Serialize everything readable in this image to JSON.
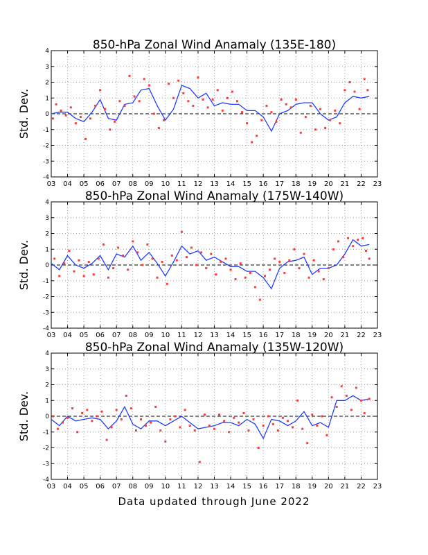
{
  "footer": "Data updated through June 2022",
  "colors": {
    "line": "#1f3cff",
    "dots": "#ff3a3a",
    "grid": "#9a9a9a",
    "axis": "#000000"
  },
  "chart_data": [
    {
      "type": "line",
      "title": "850-hPa Zonal Wind Anamaly (135E-180)",
      "ylabel": "Std. Dev.",
      "xlabel": "",
      "ylim": [
        -4,
        4
      ],
      "xlim": [
        2003,
        2023
      ],
      "yticks": [
        "-4",
        "-3",
        "-2",
        "-1",
        "0",
        "1",
        "2",
        "3",
        "4"
      ],
      "xticks": [
        "03",
        "04",
        "05",
        "06",
        "07",
        "08",
        "09",
        "10",
        "11",
        "12",
        "13",
        "14",
        "15",
        "16",
        "17",
        "18",
        "19",
        "20",
        "21",
        "22",
        "23"
      ],
      "grid": true,
      "zero_line": "dashed",
      "series": [
        {
          "style": "line",
          "x": [
            2003.0,
            2003.5,
            2004.0,
            2004.5,
            2005.0,
            2005.5,
            2006.0,
            2006.5,
            2007.0,
            2007.5,
            2008.0,
            2008.5,
            2009.0,
            2009.5,
            2010.0,
            2010.5,
            2011.0,
            2011.5,
            2012.0,
            2012.5,
            2013.0,
            2013.5,
            2014.0,
            2014.5,
            2015.0,
            2015.5,
            2016.0,
            2016.5,
            2017.0,
            2017.5,
            2018.0,
            2018.5,
            2019.0,
            2019.5,
            2020.0,
            2020.5,
            2021.0,
            2021.5,
            2022.0,
            2022.5
          ],
          "y": [
            0.0,
            0.1,
            0.1,
            -0.3,
            -0.5,
            0.1,
            0.9,
            -0.3,
            -0.4,
            0.6,
            0.7,
            1.5,
            1.6,
            0.5,
            -0.4,
            0.3,
            1.8,
            1.6,
            1.0,
            1.3,
            0.5,
            0.7,
            0.6,
            0.6,
            0.2,
            0.2,
            -0.2,
            -1.1,
            0.0,
            0.2,
            0.6,
            0.7,
            0.7,
            0.0,
            -0.4,
            -0.2,
            0.7,
            1.1,
            1.0,
            1.1
          ]
        },
        {
          "style": "scatter",
          "x": [
            2003.1,
            2003.3,
            2003.6,
            2003.9,
            2004.2,
            2004.5,
            2004.8,
            2005.1,
            2005.4,
            2005.7,
            2006.0,
            2006.3,
            2006.6,
            2006.9,
            2007.2,
            2007.5,
            2007.8,
            2008.1,
            2008.4,
            2008.7,
            2009.0,
            2009.3,
            2009.6,
            2009.9,
            2010.2,
            2010.5,
            2010.8,
            2011.1,
            2011.4,
            2011.7,
            2012.0,
            2012.3,
            2012.6,
            2012.9,
            2013.2,
            2013.5,
            2013.8,
            2014.1,
            2014.4,
            2014.7,
            2015.0,
            2015.3,
            2015.6,
            2015.9,
            2016.2,
            2016.5,
            2016.8,
            2017.1,
            2017.4,
            2017.7,
            2018.0,
            2018.3,
            2018.6,
            2018.9,
            2019.2,
            2019.5,
            2019.8,
            2020.1,
            2020.4,
            2020.7,
            2021.0,
            2021.3,
            2021.6,
            2021.9,
            2022.2,
            2022.4
          ],
          "y": [
            -0.3,
            0.6,
            0.2,
            -0.1,
            0.4,
            -0.6,
            -0.2,
            -1.6,
            -0.3,
            0.5,
            1.5,
            0.3,
            -1.0,
            -0.5,
            0.8,
            0.5,
            2.4,
            1.1,
            0.8,
            2.2,
            1.8,
            0.0,
            -0.9,
            -0.4,
            1.9,
            1.0,
            2.1,
            1.3,
            0.8,
            0.5,
            2.3,
            0.9,
            0.4,
            0.9,
            1.5,
            0.2,
            1.0,
            1.4,
            0.8,
            0.1,
            -0.6,
            -1.8,
            -1.4,
            -0.4,
            0.5,
            0.1,
            -0.5,
            0.9,
            0.6,
            0.4,
            0.9,
            -1.2,
            -0.2,
            0.5,
            -1.0,
            0.3,
            -0.9,
            -0.4,
            0.2,
            -0.6,
            1.5,
            2.0,
            1.4,
            0.3,
            2.2,
            1.5
          ]
        }
      ]
    },
    {
      "type": "line",
      "title": "850-hPa Zonal Wind Anamaly (175W-140W)",
      "ylabel": "Std. Dev.",
      "xlabel": "",
      "ylim": [
        -4,
        4
      ],
      "xlim": [
        2003,
        2023
      ],
      "yticks": [
        "-4",
        "-3",
        "-2",
        "-1",
        "0",
        "1",
        "2",
        "3",
        "4"
      ],
      "xticks": [
        "03",
        "04",
        "05",
        "06",
        "07",
        "08",
        "09",
        "10",
        "11",
        "12",
        "13",
        "14",
        "15",
        "16",
        "17",
        "18",
        "19",
        "20",
        "21",
        "22",
        "23"
      ],
      "grid": true,
      "zero_line": "dashed",
      "series": [
        {
          "style": "line",
          "x": [
            2003.0,
            2003.5,
            2004.0,
            2004.5,
            2005.0,
            2005.5,
            2006.0,
            2006.5,
            2007.0,
            2007.5,
            2008.0,
            2008.5,
            2009.0,
            2009.5,
            2010.0,
            2010.5,
            2011.0,
            2011.5,
            2012.0,
            2012.5,
            2013.0,
            2013.5,
            2014.0,
            2014.5,
            2015.0,
            2015.5,
            2016.0,
            2016.5,
            2017.0,
            2017.5,
            2018.0,
            2018.5,
            2019.0,
            2019.5,
            2020.0,
            2020.5,
            2021.0,
            2021.5,
            2022.0,
            2022.5
          ],
          "y": [
            0.1,
            -0.3,
            0.6,
            0.0,
            -0.2,
            0.1,
            0.6,
            -0.3,
            0.7,
            0.5,
            1.2,
            0.3,
            0.8,
            0.1,
            -0.7,
            0.2,
            1.2,
            0.7,
            0.9,
            0.3,
            0.5,
            0.2,
            -0.1,
            -0.1,
            -0.4,
            -0.4,
            -0.8,
            -1.5,
            -0.2,
            0.2,
            0.3,
            0.5,
            -0.6,
            -0.2,
            -0.2,
            0.0,
            0.7,
            1.6,
            1.2,
            1.3
          ]
        },
        {
          "style": "scatter",
          "x": [
            2003.2,
            2003.5,
            2003.8,
            2004.1,
            2004.4,
            2004.7,
            2005.0,
            2005.3,
            2005.6,
            2005.9,
            2006.2,
            2006.5,
            2006.8,
            2007.1,
            2007.4,
            2007.7,
            2008.0,
            2008.3,
            2008.6,
            2008.9,
            2009.2,
            2009.5,
            2009.8,
            2010.1,
            2010.4,
            2010.7,
            2011.0,
            2011.3,
            2011.6,
            2011.9,
            2012.2,
            2012.5,
            2012.8,
            2013.1,
            2013.4,
            2013.7,
            2014.0,
            2014.3,
            2014.6,
            2014.9,
            2015.2,
            2015.5,
            2015.8,
            2016.1,
            2016.4,
            2016.7,
            2017.0,
            2017.3,
            2017.6,
            2017.9,
            2018.2,
            2018.5,
            2018.8,
            2019.1,
            2019.4,
            2019.7,
            2020.0,
            2020.3,
            2020.6,
            2020.9,
            2021.2,
            2021.5,
            2021.8,
            2022.1,
            2022.3,
            2022.5
          ],
          "y": [
            0.4,
            -0.7,
            0.1,
            0.9,
            -0.4,
            0.3,
            -0.7,
            0.2,
            -0.6,
            0.4,
            1.3,
            -0.8,
            -0.2,
            1.1,
            0.6,
            -0.3,
            1.5,
            0.8,
            0.0,
            1.3,
            0.4,
            -0.8,
            0.2,
            -1.2,
            0.6,
            0.3,
            2.1,
            0.5,
            1.1,
            0.0,
            0.8,
            -0.2,
            0.7,
            -0.6,
            0.2,
            0.4,
            -0.3,
            -0.9,
            0.1,
            -0.8,
            -0.5,
            -1.4,
            -2.2,
            -0.7,
            -0.3,
            0.4,
            0.2,
            -0.5,
            0.3,
            1.0,
            -0.2,
            0.7,
            -0.8,
            0.3,
            -0.4,
            -0.9,
            -0.2,
            1.0,
            1.5,
            0.5,
            1.7,
            1.2,
            1.6,
            1.7,
            0.9,
            0.4
          ]
        }
      ]
    },
    {
      "type": "line",
      "title": "850-hPa Zonal Wind Anamaly (135W-120W)",
      "ylabel": "Std. Dev.",
      "xlabel": "",
      "ylim": [
        -4,
        4
      ],
      "xlim": [
        2003,
        2023
      ],
      "yticks": [
        "-4",
        "-3",
        "-2",
        "-1",
        "0",
        "1",
        "2",
        "3",
        "4"
      ],
      "xticks": [
        "03",
        "04",
        "05",
        "06",
        "07",
        "08",
        "09",
        "10",
        "11",
        "12",
        "13",
        "14",
        "15",
        "16",
        "17",
        "18",
        "19",
        "20",
        "21",
        "22",
        "23"
      ],
      "grid": true,
      "zero_line": "dashed",
      "series": [
        {
          "style": "line",
          "x": [
            2003.0,
            2003.5,
            2004.0,
            2004.5,
            2005.0,
            2005.5,
            2006.0,
            2006.5,
            2007.0,
            2007.5,
            2008.0,
            2008.5,
            2009.0,
            2009.5,
            2010.0,
            2010.5,
            2011.0,
            2011.5,
            2012.0,
            2012.5,
            2013.0,
            2013.5,
            2014.0,
            2014.5,
            2015.0,
            2015.5,
            2016.0,
            2016.5,
            2017.0,
            2017.5,
            2018.0,
            2018.5,
            2019.0,
            2019.5,
            2020.0,
            2020.5,
            2021.0,
            2021.5,
            2022.0,
            2022.5
          ],
          "y": [
            -0.2,
            -0.6,
            0.0,
            -0.3,
            -0.2,
            -0.1,
            -0.2,
            -0.8,
            -0.3,
            0.6,
            -0.5,
            -0.8,
            -0.3,
            -0.3,
            -0.6,
            -0.3,
            0.0,
            -0.4,
            -0.8,
            -0.7,
            -0.6,
            -0.4,
            -0.4,
            -0.6,
            -0.2,
            -0.5,
            -1.4,
            -0.2,
            -0.3,
            -0.6,
            -0.3,
            0.3,
            -0.6,
            -0.4,
            -0.7,
            1.0,
            1.0,
            1.3,
            1.0,
            1.1
          ]
        },
        {
          "style": "scatter",
          "x": [
            2003.1,
            2003.4,
            2003.7,
            2004.0,
            2004.3,
            2004.6,
            2004.9,
            2005.2,
            2005.5,
            2005.8,
            2006.1,
            2006.4,
            2006.7,
            2007.0,
            2007.3,
            2007.6,
            2007.9,
            2008.2,
            2008.5,
            2008.8,
            2009.1,
            2009.4,
            2009.7,
            2010.0,
            2010.3,
            2010.6,
            2010.9,
            2011.2,
            2011.5,
            2011.8,
            2012.1,
            2012.4,
            2012.7,
            2013.0,
            2013.3,
            2013.6,
            2013.9,
            2014.2,
            2014.5,
            2014.8,
            2015.1,
            2015.4,
            2015.7,
            2016.0,
            2016.3,
            2016.6,
            2016.9,
            2017.2,
            2017.5,
            2017.8,
            2018.1,
            2018.4,
            2018.7,
            2019.0,
            2019.3,
            2019.6,
            2019.9,
            2020.2,
            2020.5,
            2020.8,
            2021.1,
            2021.4,
            2021.7,
            2022.0,
            2022.2,
            2022.5
          ],
          "y": [
            0.0,
            -0.8,
            -0.4,
            -0.1,
            0.5,
            -1.0,
            0.2,
            0.4,
            -0.3,
            0.0,
            0.3,
            -1.5,
            -0.7,
            0.4,
            -0.2,
            1.3,
            0.5,
            -0.9,
            -0.2,
            -0.6,
            -0.4,
            0.6,
            -0.9,
            -1.6,
            -0.2,
            0.0,
            -0.7,
            0.4,
            -0.6,
            -0.9,
            -2.9,
            0.1,
            -0.6,
            -0.8,
            0.1,
            -0.3,
            -1.0,
            -0.1,
            -0.4,
            0.2,
            -0.9,
            -0.2,
            -2.0,
            -0.6,
            0.0,
            -0.5,
            -0.9,
            -0.1,
            -0.3,
            -0.7,
            1.0,
            -0.8,
            -1.7,
            0.1,
            -0.6,
            0.0,
            -1.2,
            1.2,
            0.6,
            1.9,
            1.3,
            0.4,
            1.8,
            1.0,
            0.2,
            1.1
          ]
        }
      ]
    }
  ]
}
